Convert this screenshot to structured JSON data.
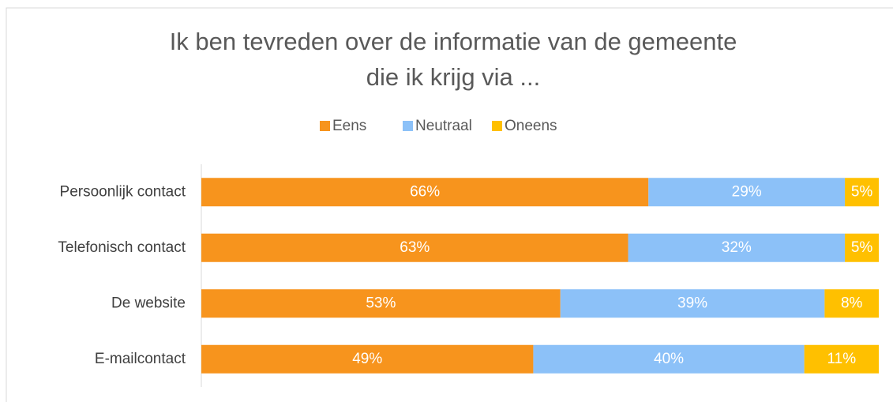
{
  "chart_data": {
    "type": "stacked-bar-horizontal",
    "title": [
      "Ik ben tevreden over de informatie van de gemeente",
      "die ik krijg via ..."
    ],
    "categories": [
      "Persoonlijk contact",
      "Telefonisch contact",
      "De website",
      "E-mailcontact"
    ],
    "series": [
      {
        "name": "Eens",
        "color": "#f7941d",
        "values": [
          66,
          63,
          53,
          49
        ],
        "value_labels": [
          "66%",
          "63%",
          "53%",
          "49%"
        ]
      },
      {
        "name": "Neutraal",
        "color": "#8cc1f8",
        "values": [
          29,
          32,
          39,
          40
        ],
        "value_labels": [
          "29%",
          "32%",
          "39%",
          "40%"
        ]
      },
      {
        "name": "Oneens",
        "color": "#ffc000",
        "values": [
          5,
          5,
          8,
          11
        ],
        "value_labels": [
          "5%",
          "5%",
          "8%",
          "11%"
        ]
      }
    ],
    "xlim": [
      0,
      100
    ],
    "legend": "top"
  }
}
